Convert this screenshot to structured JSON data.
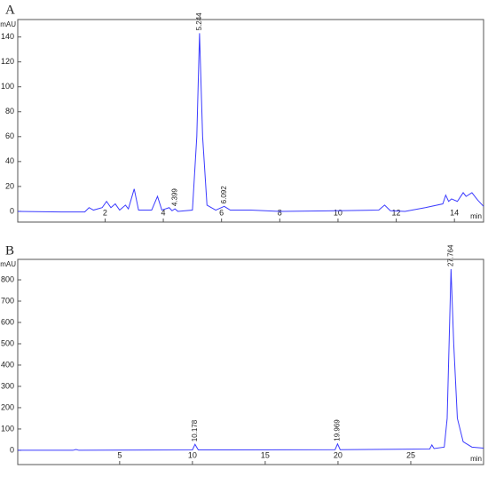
{
  "chart_data": [
    {
      "type": "line",
      "panel": "A",
      "ylabel": "mAU",
      "xlabel": "min",
      "xlim": [
        -1.0,
        15.0
      ],
      "ylim": [
        -8.6,
        154
      ],
      "xticks": [
        2,
        4,
        6,
        8,
        10,
        12,
        14
      ],
      "yticks": [
        0,
        20,
        40,
        60,
        80,
        100,
        120,
        140
      ],
      "peak_labels": [
        4.399,
        5.244,
        6.092
      ],
      "series": [
        {
          "name": "trace",
          "color": "#3b3bff",
          "x": [
            -1.0,
            0.5,
            1.3,
            1.45,
            1.6,
            1.9,
            2.05,
            2.2,
            2.35,
            2.5,
            2.7,
            2.8,
            3.0,
            3.15,
            3.6,
            3.8,
            3.95,
            4.2,
            4.3,
            4.399,
            4.5,
            5.0,
            5.15,
            5.244,
            5.35,
            5.5,
            5.8,
            6.092,
            6.3,
            7.0,
            8.0,
            10.0,
            11.4,
            11.6,
            11.8,
            12.3,
            13.0,
            13.6,
            13.7,
            13.8,
            13.9,
            14.1,
            14.3,
            14.4,
            14.6,
            14.8,
            15.0
          ],
          "values": [
            0,
            -0.5,
            -0.5,
            3,
            1,
            3,
            8,
            3,
            6,
            1,
            5,
            2,
            18,
            1,
            1,
            12,
            1,
            3,
            0.5,
            2,
            0,
            1,
            60,
            143,
            60,
            5,
            1,
            4,
            1,
            1,
            0,
            0.5,
            1,
            5,
            0.5,
            0,
            3,
            6,
            13,
            8,
            10,
            8,
            15,
            12,
            15,
            9,
            4
          ]
        }
      ]
    },
    {
      "type": "line",
      "panel": "B",
      "ylabel": "mAU",
      "xlabel": "min",
      "xlim": [
        -2,
        30
      ],
      "ylim": [
        -67,
        896
      ],
      "xticks": [
        5,
        10,
        15,
        20,
        25
      ],
      "yticks": [
        0,
        100,
        200,
        300,
        400,
        500,
        600,
        700,
        800
      ],
      "peak_labels": [
        10.178,
        19.969,
        27.764
      ],
      "series": [
        {
          "name": "trace",
          "color": "#3b3bff",
          "x": [
            -2,
            1.8,
            2.0,
            2.2,
            10.0,
            10.178,
            10.4,
            12,
            19.8,
            19.969,
            20.15,
            26.3,
            26.45,
            26.6,
            27.3,
            27.5,
            27.764,
            27.95,
            28.2,
            28.6,
            29.2,
            30
          ],
          "values": [
            0,
            0,
            4,
            0,
            2,
            28,
            2,
            2,
            3,
            30,
            3,
            6,
            25,
            8,
            15,
            150,
            850,
            500,
            150,
            40,
            15,
            10
          ]
        }
      ]
    }
  ]
}
